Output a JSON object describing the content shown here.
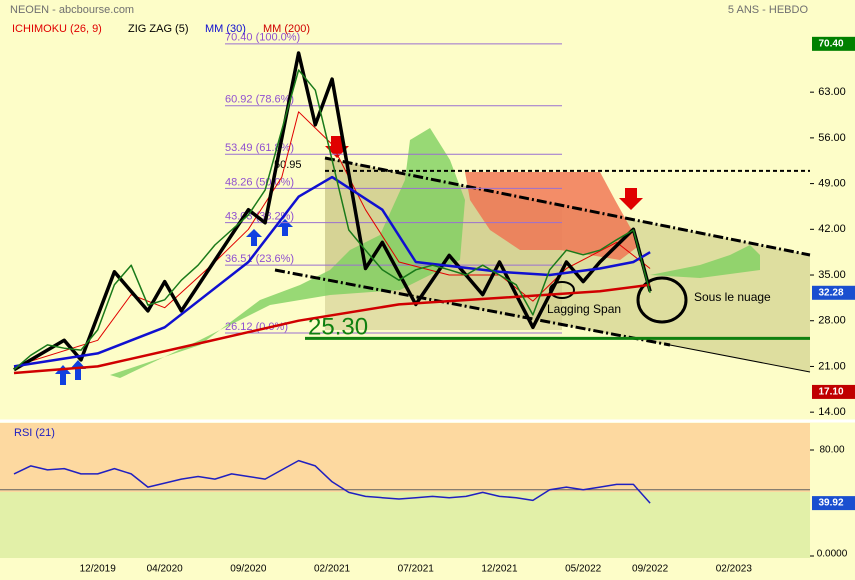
{
  "header": {
    "title": "NEOEN - abcbourse.com",
    "period": "5 ANS - HEBDO"
  },
  "chart_data": [
    {
      "type": "line",
      "x": [
        "07/2019",
        "08/2019",
        "09/2019",
        "10/2019",
        "11/2019",
        "12/2019",
        "01/2020",
        "02/2020",
        "03/2020",
        "04/2020",
        "05/2020",
        "06/2020",
        "07/2020",
        "08/2020",
        "09/2020",
        "10/2020",
        "11/2020",
        "12/2020",
        "01/2021",
        "02/2021",
        "03/2021",
        "04/2021",
        "05/2021",
        "06/2021",
        "07/2021",
        "08/2021",
        "09/2021",
        "10/2021",
        "11/2021",
        "12/2021",
        "01/2022",
        "02/2022",
        "03/2022",
        "04/2022",
        "05/2022",
        "06/2022",
        "07/2022",
        "08/2022",
        "09/2022"
      ],
      "values": [
        20.5,
        22.7,
        24.3,
        23.8,
        23.5,
        26.6,
        33.5,
        36.5,
        30.4,
        31.2,
        34.2,
        36.5,
        39.6,
        41.9,
        44.2,
        48,
        57.2,
        66.4,
        63.3,
        52.6,
        41.9,
        38.8,
        35.8,
        34.2,
        35.8,
        36.5,
        35.8,
        35,
        36.5,
        35,
        33.5,
        28.9,
        35.8,
        38.8,
        38.1,
        38.8,
        40.4,
        41.9,
        32.28
      ],
      "color": "#1a7a1a",
      "series": [
        {
          "name": "ICHIMOKU (26, 9)",
          "color": "#e00000",
          "x": [
            "07/2019",
            "12/2019",
            "02/2020",
            "04/2020",
            "07/2020",
            "09/2020",
            "11/2020",
            "12/2020",
            "02/2021",
            "03/2021",
            "04/2021",
            "06/2021",
            "09/2021",
            "12/2021",
            "02/2022",
            "04/2022",
            "07/2022",
            "09/2022"
          ],
          "values": [
            21,
            25,
            32,
            30,
            37,
            42,
            50,
            60,
            55,
            50,
            45,
            37,
            35,
            35,
            31,
            36,
            40,
            36
          ]
        },
        {
          "name": "ZIG ZAG (5)",
          "color": "#000000",
          "x": [
            "07/2019",
            "10/2019",
            "11/2019",
            "01/2020",
            "03/2020",
            "04/2020",
            "05/2020",
            "09/2020",
            "10/2020",
            "12/2020",
            "01/2021",
            "02/2021",
            "04/2021",
            "05/2021",
            "07/2021",
            "09/2021",
            "11/2021",
            "12/2021",
            "02/2022",
            "04/2022",
            "05/2022",
            "06/2022",
            "08/2022",
            "09/2022"
          ],
          "values": [
            20.5,
            25,
            22,
            35.5,
            29.5,
            34,
            29.5,
            45,
            43,
            69,
            58,
            65,
            36,
            40,
            30.5,
            38,
            32,
            37,
            27,
            37,
            34,
            37,
            42,
            32.5
          ]
        },
        {
          "name": "MM (30)",
          "color": "#1010d0",
          "x": [
            "07/2019",
            "12/2019",
            "04/2020",
            "09/2020",
            "12/2020",
            "02/2021",
            "05/2021",
            "07/2021",
            "12/2021",
            "03/2022",
            "06/2022",
            "08/2022",
            "09/2022"
          ],
          "values": [
            21,
            23,
            27,
            37,
            47,
            50,
            45,
            37,
            35.5,
            35,
            36,
            37,
            38.5
          ]
        },
        {
          "name": "MM (200)",
          "color": "#d00000",
          "x": [
            "07/2019",
            "12/2019",
            "06/2020",
            "12/2020",
            "06/2021",
            "12/2021",
            "06/2022",
            "09/2022"
          ],
          "values": [
            20,
            21,
            24.5,
            28,
            30.5,
            31.5,
            32.5,
            33.5
          ]
        }
      ],
      "ylim": [
        12.8,
        74.05
      ],
      "yticks": [
        {
          "value": 14,
          "label": "14.00"
        },
        {
          "value": 21,
          "label": "21.00"
        },
        {
          "value": 28,
          "label": "28.00"
        },
        {
          "value": 35,
          "label": "35.00"
        },
        {
          "value": 42,
          "label": "42.00"
        },
        {
          "value": 49,
          "label": "49.00"
        },
        {
          "value": 56,
          "label": "56.00"
        },
        {
          "value": 63,
          "label": "63.00"
        }
      ],
      "fibonacci": [
        {
          "value": 70.4,
          "label": "70.40 (100.0%)"
        },
        {
          "value": 60.92,
          "label": "60.92 (78.6%)"
        },
        {
          "value": 53.49,
          "label": "53.49 (61.8%)"
        },
        {
          "value": 48.26,
          "label": "48.26 (50.0%)"
        },
        {
          "value": 43.03,
          "label": "43.03 (38.2%)"
        },
        {
          "value": 36.51,
          "label": "36.51 (23.6%)"
        },
        {
          "value": 26.12,
          "label": "26.12 (0.0%)"
        }
      ],
      "levels": [
        {
          "value": 25.3,
          "label": "25.30",
          "color": "#108010"
        },
        {
          "value": 50.95,
          "label": "50.95",
          "color": "#000000"
        }
      ],
      "price_tags": [
        {
          "value": 70.4,
          "label": "70.40",
          "color": "#008000"
        },
        {
          "value": 32.28,
          "label": "32.28",
          "color": "#1a4fd0"
        },
        {
          "value": 17.1,
          "label": "17.10",
          "color": "#c00000"
        }
      ],
      "notes": [
        "Lagging Span",
        "Sous le nuage"
      ]
    },
    {
      "type": "line",
      "title": "RSI (21)",
      "x": [
        "07/2019",
        "08/2019",
        "09/2019",
        "10/2019",
        "11/2019",
        "12/2019",
        "01/2020",
        "02/2020",
        "03/2020",
        "04/2020",
        "05/2020",
        "06/2020",
        "07/2020",
        "08/2020",
        "09/2020",
        "10/2020",
        "11/2020",
        "12/2020",
        "01/2021",
        "02/2021",
        "03/2021",
        "04/2021",
        "05/2021",
        "06/2021",
        "07/2021",
        "08/2021",
        "09/2021",
        "10/2021",
        "11/2021",
        "12/2021",
        "01/2022",
        "02/2022",
        "03/2022",
        "04/2022",
        "05/2022",
        "06/2022",
        "07/2022",
        "08/2022",
        "09/2022"
      ],
      "values": [
        62,
        68,
        65,
        66,
        62,
        62,
        66,
        62,
        52,
        55,
        58,
        60,
        58,
        62,
        60,
        58,
        65,
        72,
        68,
        56,
        48,
        45,
        44,
        43,
        44,
        45,
        44,
        45,
        48,
        45,
        44,
        42,
        50,
        52,
        50,
        52,
        54,
        54,
        39.92
      ],
      "color": "#2020c0",
      "ylim": [
        0,
        100
      ],
      "midline": 50,
      "yticks": [
        {
          "value": 80,
          "label": "80.00"
        },
        {
          "value": 0,
          "label": "0.0000"
        }
      ],
      "price_tags": [
        {
          "value": 39.92,
          "label": "39.92",
          "color": "#1a4fd0"
        }
      ],
      "xticks": [
        "12/2019",
        "04/2020",
        "09/2020",
        "02/2021",
        "07/2021",
        "12/2021",
        "05/2022",
        "09/2022",
        "02/2023"
      ]
    }
  ]
}
